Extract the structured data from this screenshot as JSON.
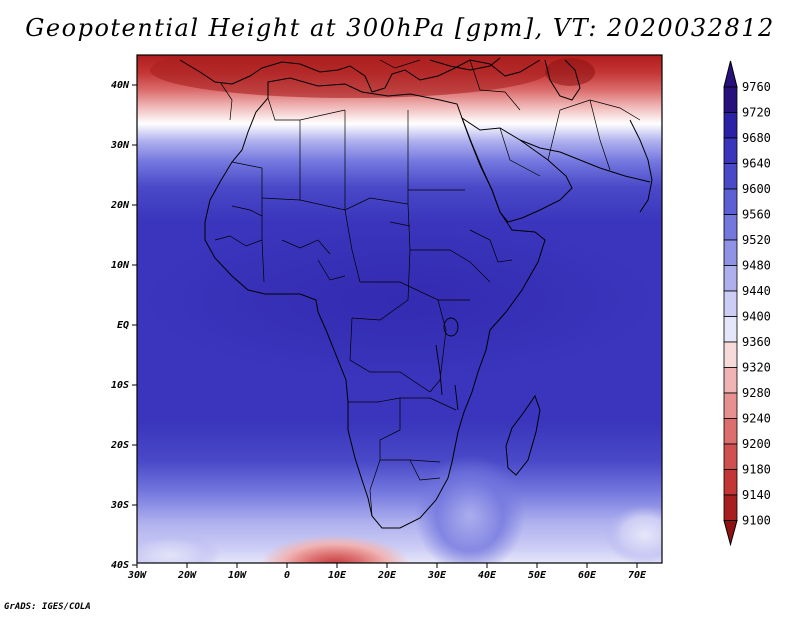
{
  "title": "Geopotential Height at 300hPa [gpm], VT: 2020032812",
  "credit": "GrADS: IGES/COLA",
  "lat_labels": [
    "40N",
    "30N",
    "20N",
    "10N",
    "EQ",
    "10S",
    "20S",
    "30S",
    "40S"
  ],
  "lon_labels": [
    "30W",
    "20W",
    "10W",
    "0",
    "10E",
    "20E",
    "30E",
    "40E",
    "50E",
    "60E",
    "70E"
  ],
  "colorbar": {
    "levels": [
      "9760",
      "9720",
      "9680",
      "9640",
      "9600",
      "9560",
      "9520",
      "9480",
      "9440",
      "9400",
      "9360",
      "9320",
      "9280",
      "9240",
      "9200",
      "9180",
      "9140",
      "9100"
    ],
    "colors": [
      "#28117a",
      "#2c21a6",
      "#3a35bc",
      "#4a49c8",
      "#5d5fd4",
      "#7477de",
      "#9092e6",
      "#aeb0ee",
      "#ccccf5",
      "#e6e6fa",
      "#f7dada",
      "#f0b4b4",
      "#e69090",
      "#dc6e6e",
      "#d05050",
      "#c23636",
      "#a81f1f",
      "#8e1212"
    ]
  },
  "map_colors": {
    "deep_blue": "#3a35bc",
    "mid_blue": "#4a49c8",
    "white": "#ffffff",
    "dark_red": "#b52424"
  }
}
